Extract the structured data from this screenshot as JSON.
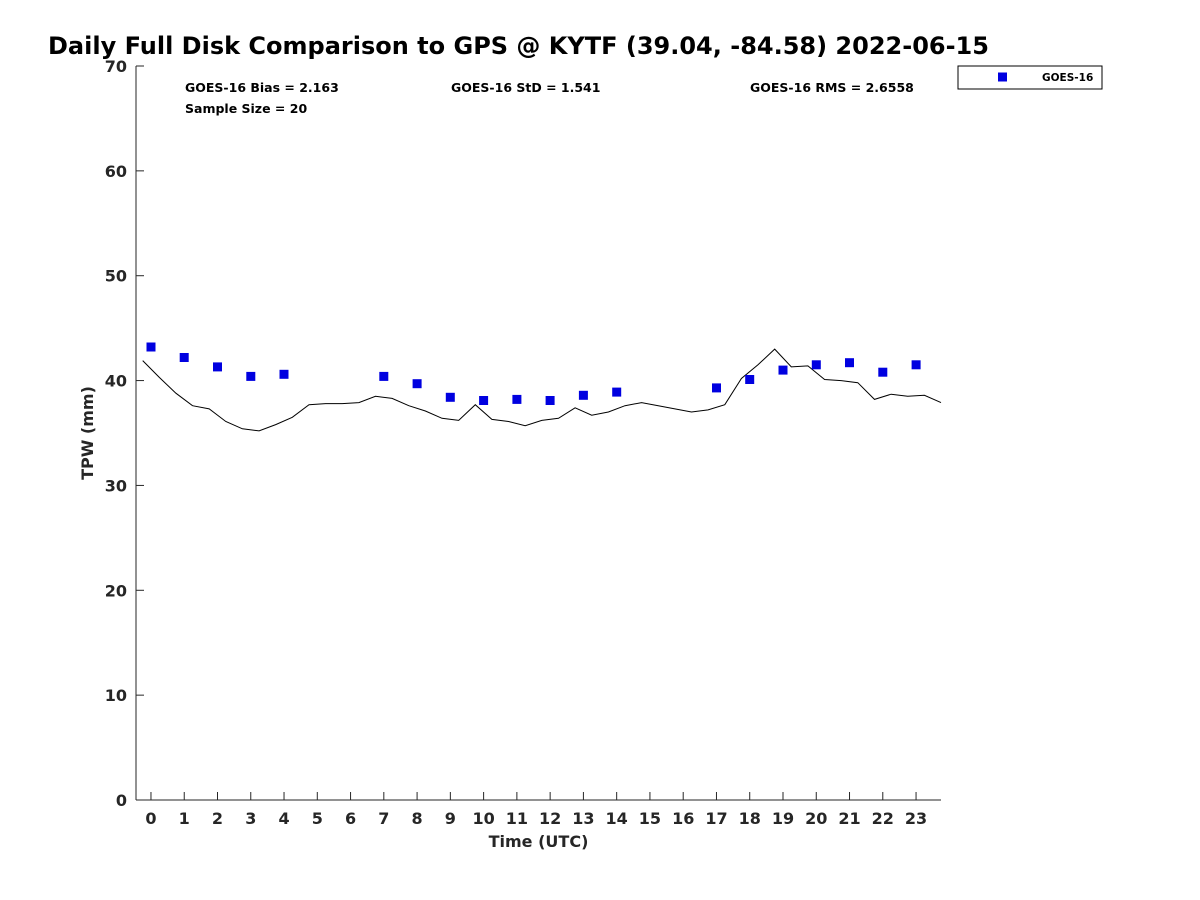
{
  "chart_data": {
    "type": "scatter",
    "title": "Daily Full Disk Comparison to GPS @ KYTF (39.04, -84.58) 2022-06-15",
    "xlabel": "Time (UTC)",
    "ylabel": "TPW (mm)",
    "xlim": [
      -0.45,
      23.75
    ],
    "ylim": [
      0,
      70
    ],
    "x_ticks": [
      0,
      1,
      2,
      3,
      4,
      5,
      6,
      7,
      8,
      9,
      10,
      11,
      12,
      13,
      14,
      15,
      16,
      17,
      18,
      19,
      20,
      21,
      22,
      23
    ],
    "y_ticks": [
      0,
      10,
      20,
      30,
      40,
      50,
      60,
      70
    ],
    "grid": false,
    "legend_position": "top-right, outside plot",
    "stats": {
      "bias": "GOES-16 Bias = 2.163",
      "std": "GOES-16 StD = 1.541",
      "rms": "GOES-16 RMS = 2.6558",
      "sample_size": "Sample Size = 20"
    },
    "series": [
      {
        "name": "GOES-16",
        "kind": "scatter",
        "color": "#0000e0",
        "marker": "square",
        "x": [
          0,
          1,
          2,
          3,
          4,
          7,
          8,
          9,
          10,
          11,
          12,
          13,
          14,
          17,
          18,
          19,
          20,
          21,
          22,
          23
        ],
        "y": [
          43.2,
          42.2,
          41.3,
          40.4,
          40.6,
          40.4,
          39.7,
          38.4,
          38.1,
          38.2,
          38.1,
          38.6,
          38.9,
          39.3,
          40.1,
          41.0,
          41.5,
          41.7,
          40.8,
          41.5
        ]
      },
      {
        "kind": "line",
        "color": "#000000",
        "x": [
          -0.25,
          0.25,
          0.75,
          1.25,
          1.75,
          2.25,
          2.75,
          3.25,
          3.75,
          4.25,
          4.75,
          5.25,
          5.75,
          6.25,
          6.75,
          7.25,
          7.75,
          8.25,
          8.75,
          9.25,
          9.75,
          10.25,
          10.75,
          11.25,
          11.75,
          12.25,
          12.75,
          13.25,
          13.75,
          14.25,
          14.75,
          15.25,
          15.75,
          16.25,
          16.75,
          17.25,
          17.75,
          18.25,
          18.75,
          19.25,
          19.75,
          20.25,
          20.75,
          21.25,
          21.75,
          22.25,
          22.75,
          23.25,
          23.75
        ],
        "y": [
          41.9,
          40.3,
          38.8,
          37.6,
          37.3,
          36.1,
          35.4,
          35.2,
          35.8,
          36.5,
          37.7,
          37.8,
          37.8,
          37.9,
          38.5,
          38.3,
          37.6,
          37.1,
          36.4,
          36.2,
          37.7,
          36.3,
          36.1,
          35.7,
          36.2,
          36.4,
          37.4,
          36.7,
          37.0,
          37.6,
          37.9,
          37.6,
          37.3,
          37.0,
          37.2,
          37.7,
          40.2,
          41.5,
          43.0,
          41.3,
          41.4,
          40.1,
          40.0,
          39.8,
          38.2,
          38.7,
          38.5,
          38.6,
          37.9
        ]
      }
    ]
  }
}
